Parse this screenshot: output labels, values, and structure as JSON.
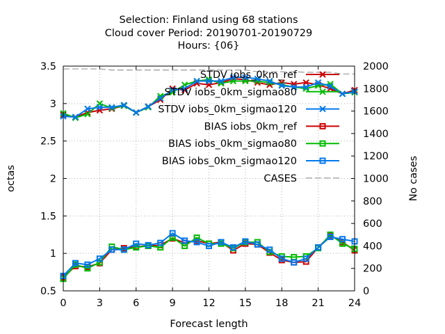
{
  "chart_data": {
    "type": "line",
    "title_lines": [
      "Selection: Finland using    68 stations",
      "Cloud cover   Period: 20190701-20190729",
      "Hours: {06}"
    ],
    "xlabel": "Forecast length",
    "ylabel": "octas",
    "y2label": "No cases",
    "xlim": [
      0,
      24
    ],
    "ylim": [
      0.5,
      3.5
    ],
    "y2lim": [
      0,
      2000
    ],
    "xticks": [
      "0",
      "3",
      "6",
      "9",
      "12",
      "15",
      "18",
      "21",
      "24"
    ],
    "yticks": [
      "0.5",
      "1",
      "1.5",
      "2",
      "2.5",
      "3",
      "3.5"
    ],
    "y2ticks": [
      "0",
      "200",
      "400",
      "600",
      "800",
      "1000",
      "1200",
      "1400",
      "1600",
      "1800",
      "2000"
    ],
    "grid": true,
    "legend_position": "top-right",
    "x": [
      0,
      1,
      2,
      3,
      4,
      5,
      6,
      7,
      8,
      9,
      10,
      11,
      12,
      13,
      14,
      15,
      16,
      17,
      18,
      19,
      20,
      21,
      22,
      23,
      24
    ],
    "series": [
      {
        "name": "STDV iobs_0km_ref",
        "color": "#cc0000",
        "marker": "x",
        "axis": "y",
        "values": [
          2.85,
          2.82,
          2.88,
          2.91,
          2.93,
          2.97,
          2.88,
          2.96,
          3.05,
          3.2,
          3.18,
          3.27,
          3.25,
          3.28,
          3.33,
          3.32,
          3.28,
          3.25,
          3.28,
          3.26,
          3.28,
          3.25,
          3.2,
          3.13,
          3.18
        ]
      },
      {
        "name": "STDV iobs_0km_sigmao80",
        "color": "#00bb00",
        "marker": "x",
        "axis": "y",
        "values": [
          2.87,
          2.81,
          2.86,
          3.0,
          2.94,
          2.97,
          2.88,
          2.95,
          3.1,
          3.15,
          3.25,
          3.3,
          3.32,
          3.27,
          3.3,
          3.3,
          3.3,
          3.28,
          3.25,
          3.22,
          3.2,
          3.24,
          3.26,
          3.13,
          3.15
        ]
      },
      {
        "name": "STDV iobs_0km_sigmao120",
        "color": "#0077ee",
        "marker": "x",
        "axis": "y",
        "values": [
          2.83,
          2.82,
          2.93,
          2.95,
          2.95,
          2.98,
          2.88,
          2.96,
          3.07,
          3.18,
          3.2,
          3.3,
          3.3,
          3.3,
          3.35,
          3.35,
          3.33,
          3.3,
          3.24,
          3.22,
          3.22,
          3.28,
          3.23,
          3.13,
          3.16
        ]
      },
      {
        "name": "BIAS iobs_0km_ref",
        "color": "#cc0000",
        "marker": "square",
        "axis": "y",
        "values": [
          0.68,
          0.83,
          0.82,
          0.87,
          1.05,
          1.07,
          1.09,
          1.1,
          1.11,
          1.2,
          1.14,
          1.17,
          1.13,
          1.15,
          1.04,
          1.13,
          1.12,
          1.01,
          0.91,
          0.88,
          0.89,
          1.08,
          1.24,
          1.15,
          1.04
        ]
      },
      {
        "name": "BIAS iobs_0km_sigmao80",
        "color": "#00bb00",
        "marker": "square",
        "axis": "y",
        "values": [
          0.66,
          0.85,
          0.8,
          0.88,
          1.09,
          1.05,
          1.08,
          1.1,
          1.08,
          1.21,
          1.1,
          1.21,
          1.13,
          1.13,
          1.07,
          1.15,
          1.15,
          1.02,
          0.96,
          0.95,
          0.96,
          1.07,
          1.25,
          1.13,
          1.06
        ]
      },
      {
        "name": "BIAS iobs_0km_sigmao120",
        "color": "#0077ee",
        "marker": "square",
        "axis": "y",
        "values": [
          0.7,
          0.87,
          0.85,
          0.93,
          1.05,
          1.05,
          1.13,
          1.11,
          1.14,
          1.27,
          1.17,
          1.15,
          1.1,
          1.15,
          1.08,
          1.16,
          1.12,
          1.05,
          0.93,
          0.88,
          0.93,
          1.08,
          1.22,
          1.19,
          1.16
        ]
      },
      {
        "name": "CASES",
        "color": "#999999",
        "marker": "none",
        "dash": true,
        "axis": "y2",
        "values": [
          1975,
          1975,
          1975,
          1975,
          1965,
          1965,
          1965,
          1965,
          1965,
          1965,
          1965,
          1965,
          1965,
          1965,
          1965,
          1965,
          1950,
          1950,
          1950,
          1950,
          1945,
          1945,
          1945,
          1930,
          1930
        ]
      }
    ]
  }
}
